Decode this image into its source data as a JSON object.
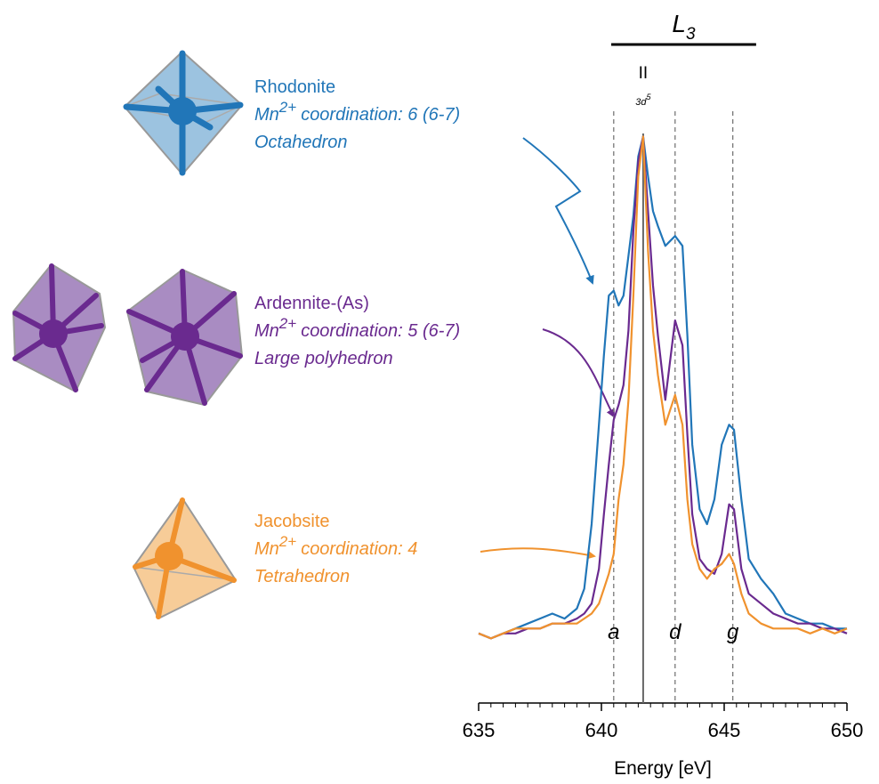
{
  "chart_data": {
    "type": "line",
    "x_label": "Energy [eV]",
    "x": [
      635,
      635.5,
      636,
      636.5,
      637,
      637.5,
      638,
      638.5,
      639,
      639.3,
      639.6,
      639.9,
      640.1,
      640.3,
      640.5,
      640.7,
      640.9,
      641.1,
      641.3,
      641.5,
      641.7,
      641.9,
      642.1,
      642.3,
      642.6,
      643.0,
      643.3,
      643.5,
      643.7,
      644.0,
      644.3,
      644.6,
      644.9,
      645.2,
      645.4,
      645.7,
      646.0,
      646.5,
      647,
      647.5,
      648,
      648.5,
      649,
      649.5,
      650
    ],
    "series": [
      {
        "name": "Rhodonite",
        "ion": "Mn",
        "charge": "2+",
        "coordination": "coordination: 6 (6-7)",
        "geometry": "Octahedron",
        "color": "#2176b8",
        "values": [
          0,
          -0.01,
          0,
          0.01,
          0.02,
          0.03,
          0.04,
          0.03,
          0.05,
          0.09,
          0.22,
          0.42,
          0.56,
          0.68,
          0.69,
          0.66,
          0.68,
          0.76,
          0.84,
          0.96,
          1.0,
          0.92,
          0.85,
          0.82,
          0.78,
          0.8,
          0.78,
          0.6,
          0.38,
          0.25,
          0.22,
          0.27,
          0.38,
          0.42,
          0.41,
          0.27,
          0.15,
          0.11,
          0.08,
          0.04,
          0.03,
          0.02,
          0.02,
          0.01,
          0.01
        ]
      },
      {
        "name": "Ardennite-(As)",
        "ion": "Mn",
        "charge": "2+",
        "coordination": "coordination: 5 (6-7)",
        "geometry": "Large polyhedron",
        "color": "#6a2a8f",
        "values": [
          0,
          -0.01,
          0,
          0,
          0.01,
          0.01,
          0.02,
          0.02,
          0.03,
          0.04,
          0.06,
          0.13,
          0.24,
          0.34,
          0.43,
          0.46,
          0.5,
          0.61,
          0.81,
          0.95,
          1.0,
          0.85,
          0.7,
          0.6,
          0.47,
          0.63,
          0.58,
          0.4,
          0.24,
          0.15,
          0.13,
          0.12,
          0.16,
          0.26,
          0.25,
          0.13,
          0.08,
          0.06,
          0.04,
          0.03,
          0.02,
          0.02,
          0.01,
          0.01,
          0.0
        ]
      },
      {
        "name": "Jacobsite",
        "ion": "Mn",
        "charge": "2+",
        "coordination": "coordination: 4",
        "geometry": "Tetrahedron",
        "color": "#f0922e",
        "values": [
          0,
          -0.01,
          0,
          0.01,
          0.01,
          0.01,
          0.02,
          0.02,
          0.02,
          0.03,
          0.04,
          0.06,
          0.09,
          0.12,
          0.16,
          0.27,
          0.34,
          0.47,
          0.68,
          0.92,
          1.0,
          0.77,
          0.61,
          0.52,
          0.42,
          0.48,
          0.42,
          0.27,
          0.18,
          0.13,
          0.11,
          0.13,
          0.14,
          0.16,
          0.14,
          0.08,
          0.04,
          0.02,
          0.01,
          0.01,
          0.01,
          0.0,
          0.01,
          0.0,
          0.01
        ]
      }
    ],
    "xlim": [
      635,
      650
    ],
    "ylim": [
      -0.14,
      1.06
    ],
    "xticks": [
      635,
      640,
      645,
      650
    ],
    "xminorticks": [
      635.5,
      636,
      636.5,
      637,
      637.5,
      638,
      638.5,
      639,
      639.5,
      640.5,
      641,
      641.5,
      642,
      642.5,
      643,
      643.5,
      644,
      644.5,
      645.5,
      646,
      646.5,
      647,
      647.5,
      648,
      648.5,
      649,
      649.5
    ],
    "reference_line": {
      "x": 641.7,
      "label": "II",
      "sublabel": "3d",
      "sublabel_sup": "5"
    },
    "markers": [
      {
        "x": 640.5,
        "label": "a"
      },
      {
        "x": 643.0,
        "label": "d"
      },
      {
        "x": 645.35,
        "label": "g"
      }
    ],
    "bracket": {
      "x": [
        640.4,
        646.3
      ],
      "label": "L",
      "subscript": "3"
    }
  }
}
